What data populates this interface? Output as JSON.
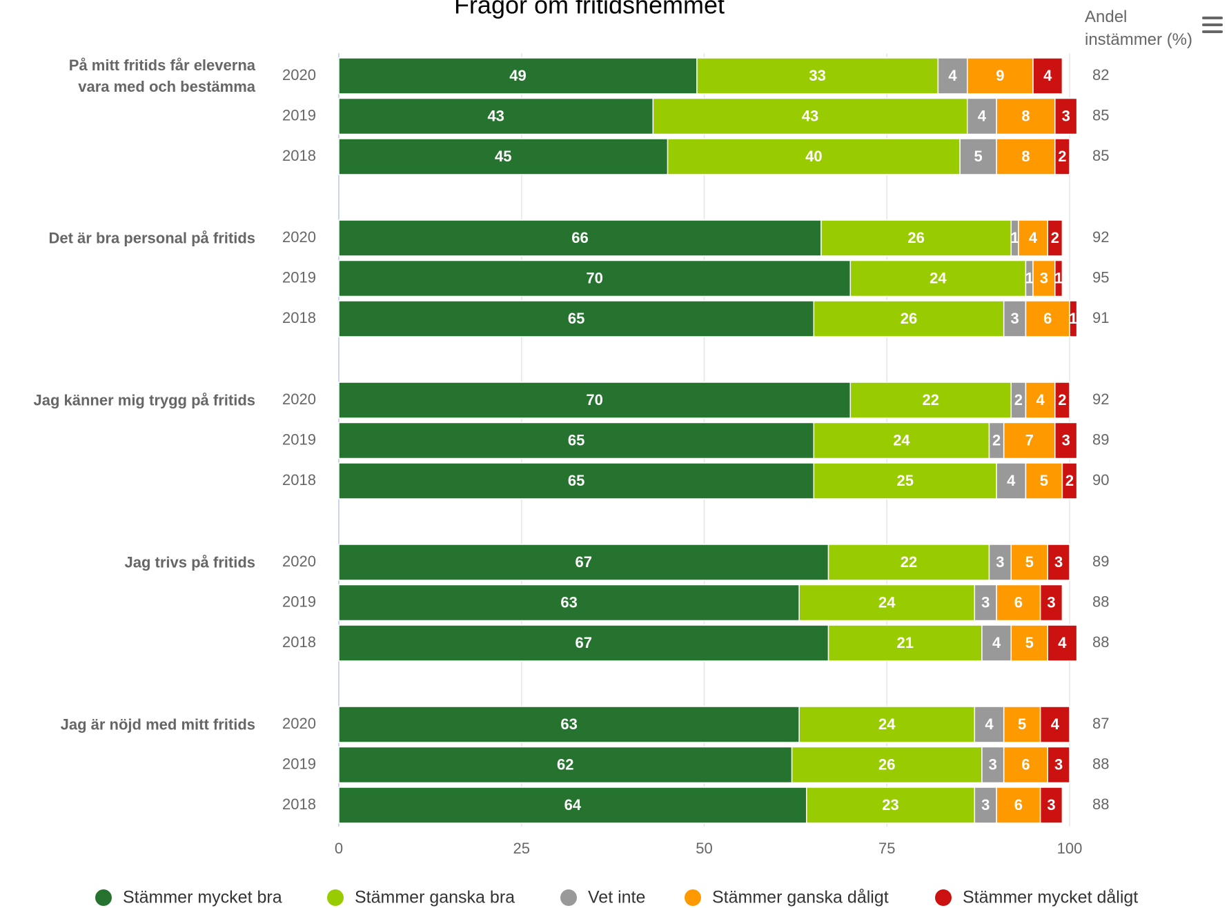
{
  "chart_data": {
    "type": "stacked_barh",
    "title": "Frågor om fritidshemmet",
    "groups": [
      "På mitt fritids får eleverna\nvara med och bestämma",
      "Det är bra personal på fritids",
      "Jag känner mig trygg på fritids",
      "Jag trivs på fritids",
      "Jag är nöjd med mitt fritids"
    ],
    "categories": [
      "2020",
      "2019",
      "2018",
      "2020",
      "2019",
      "2018",
      "2020",
      "2019",
      "2018",
      "2020",
      "2019",
      "2018",
      "2020",
      "2019",
      "2018"
    ],
    "series": [
      {
        "name": "Stämmer mycket bra",
        "color": "#267330",
        "values": [
          49,
          43,
          45,
          66,
          70,
          65,
          70,
          65,
          65,
          67,
          63,
          67,
          63,
          62,
          64
        ]
      },
      {
        "name": "Stämmer ganska bra",
        "color": "#99cc00",
        "values": [
          33,
          43,
          40,
          26,
          24,
          26,
          22,
          24,
          25,
          22,
          24,
          21,
          24,
          26,
          23
        ]
      },
      {
        "name": "Vet inte",
        "color": "#999999",
        "values": [
          4,
          4,
          5,
          1,
          1,
          3,
          2,
          2,
          4,
          3,
          3,
          4,
          4,
          3,
          3
        ]
      },
      {
        "name": "Stämmer ganska dåligt",
        "color": "#ff9900",
        "values": [
          9,
          8,
          8,
          4,
          3,
          6,
          4,
          7,
          5,
          5,
          6,
          5,
          5,
          6,
          6
        ]
      },
      {
        "name": "Stämmer mycket dåligt",
        "color": "#cc1111",
        "values": [
          4,
          3,
          2,
          2,
          1,
          1,
          2,
          3,
          2,
          3,
          3,
          4,
          4,
          3,
          3
        ]
      }
    ],
    "right_title": "Andel\ninstämmer (%)",
    "right_values": [
      82,
      85,
      85,
      92,
      95,
      91,
      92,
      89,
      90,
      89,
      88,
      88,
      87,
      88,
      88
    ],
    "xlim": [
      0,
      100
    ],
    "xticks": [
      0,
      25,
      50,
      75,
      100
    ],
    "grid": true
  }
}
